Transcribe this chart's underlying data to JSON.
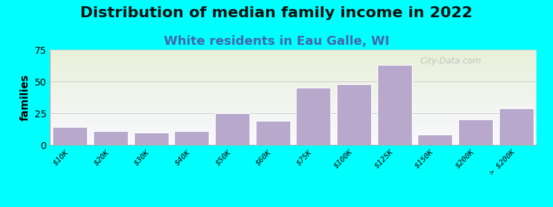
{
  "title": "Distribution of median family income in 2022",
  "subtitle": "White residents in Eau Galle, WI",
  "ylabel": "families",
  "background_color": "#00FFFF",
  "plot_bg_gradient_top": "#e8f0d8",
  "plot_bg_gradient_bottom": "#f8f8ff",
  "bar_color": "#b8a8cc",
  "bar_edge_color": "#ffffff",
  "categories": [
    "$10K",
    "$20K",
    "$30K",
    "$40K",
    "$50K",
    "$60K",
    "$75K",
    "$100K",
    "$125K",
    "$150K",
    "$200K",
    "> $200K"
  ],
  "values": [
    14,
    11,
    10,
    11,
    25,
    19,
    45,
    48,
    63,
    8,
    20,
    29
  ],
  "ylim": [
    0,
    75
  ],
  "yticks": [
    0,
    25,
    50,
    75
  ],
  "watermark": "City-Data.com",
  "title_fontsize": 16,
  "subtitle_fontsize": 13,
  "subtitle_color": "#4466aa",
  "ylabel_fontsize": 11
}
